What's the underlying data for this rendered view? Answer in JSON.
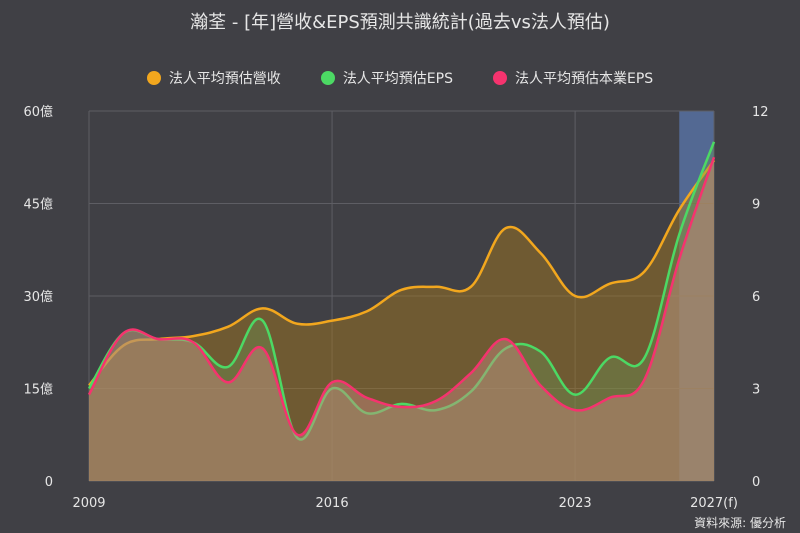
{
  "chart_data": {
    "type": "area",
    "title": "瀚荃 - [年]營收&EPS預測共識統計(過去vs法人預估)",
    "x": [
      2009,
      2010,
      2011,
      2012,
      2013,
      2014,
      2015,
      2016,
      2017,
      2018,
      2019,
      2020,
      2021,
      2022,
      2023,
      2024,
      2025,
      2026,
      2027
    ],
    "x_tick_labels": [
      "2009",
      "2016",
      "2023",
      "2027(f)"
    ],
    "forecast_start_year": 2026,
    "y_left": {
      "ticks": [
        "0",
        "15億",
        "30億",
        "45億",
        "60億"
      ],
      "range": [
        0,
        60
      ]
    },
    "y_right": {
      "ticks": [
        "0",
        "3",
        "6",
        "9",
        "12"
      ],
      "range": [
        0,
        12
      ]
    },
    "series": [
      {
        "name": "法人平均預估營收",
        "axis": "left",
        "color": "#f2a71e",
        "values": [
          15.5,
          22,
          23,
          23.5,
          25,
          28,
          25.5,
          26,
          27.5,
          31,
          31.5,
          31.5,
          41,
          37,
          30,
          32,
          34,
          44,
          52
        ]
      },
      {
        "name": "法人平均預估EPS",
        "axis": "right",
        "color": "#4cd964",
        "values": [
          3.0,
          4.8,
          4.6,
          4.5,
          3.7,
          5.2,
          1.4,
          3.0,
          2.2,
          2.5,
          2.3,
          2.9,
          4.3,
          4.2,
          2.8,
          4.0,
          4.0,
          8.0,
          11.0
        ]
      },
      {
        "name": "法人平均預估本業EPS",
        "axis": "right",
        "color": "#f5336e",
        "values": [
          2.8,
          4.8,
          4.6,
          4.5,
          3.2,
          4.3,
          1.5,
          3.2,
          2.7,
          2.4,
          2.6,
          3.5,
          4.6,
          3.1,
          2.3,
          2.7,
          3.3,
          7.2,
          10.5
        ]
      }
    ],
    "grid": true,
    "legend_position": "top-center"
  },
  "source_text": "資料來源: 優分析"
}
